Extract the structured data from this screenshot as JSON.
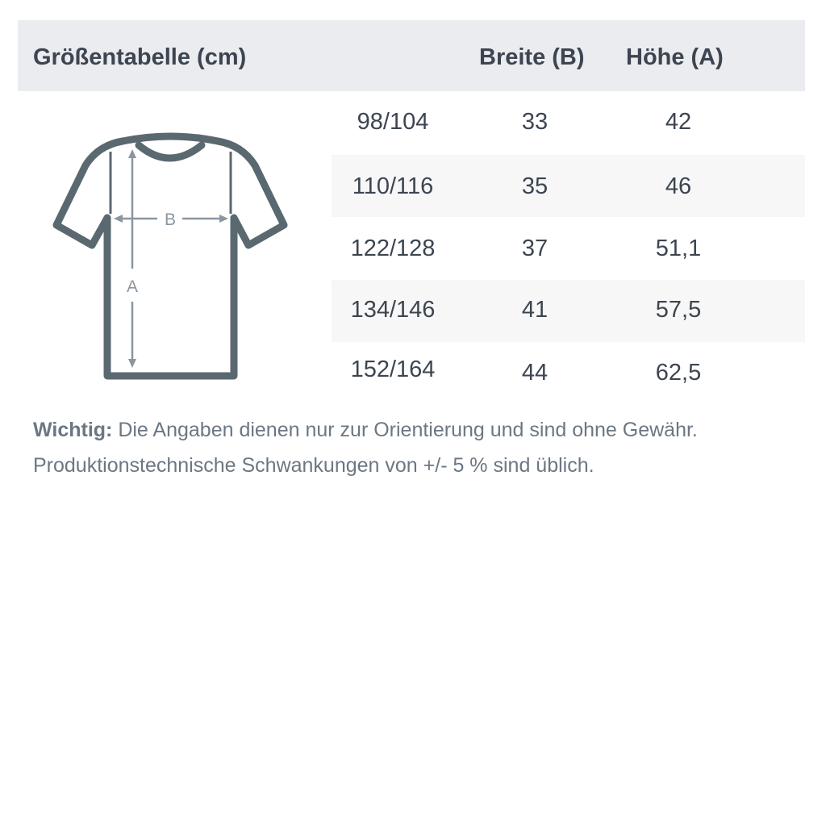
{
  "header": {
    "title": "Größentabelle (cm)",
    "col_b": "Breite (B)",
    "col_a": "Höhe (A)"
  },
  "diagram": {
    "label_b": "B",
    "label_a": "A",
    "outline_color": "#5a6870",
    "arrow_color": "#8a96a0"
  },
  "rows": [
    {
      "size": "98/104",
      "b": "33",
      "a": "42"
    },
    {
      "size": "110/116",
      "b": "35",
      "a": "46"
    },
    {
      "size": "122/128",
      "b": "37",
      "a": "51,1"
    },
    {
      "size": "134/146",
      "b": "41",
      "a": "57,5"
    },
    {
      "size": "152/164",
      "b": "44",
      "a": "62,5"
    }
  ],
  "note": {
    "bold": "Wichtig:",
    "line1": " Die Angaben dienen nur zur Orientierung und sind ohne Gewähr.",
    "line2": "Produktionstechnische Schwankungen von +/- 5 % sind üblich."
  }
}
